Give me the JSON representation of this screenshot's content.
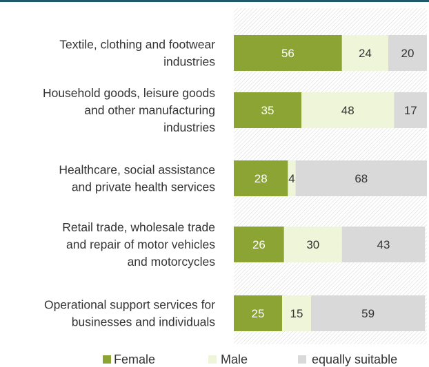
{
  "chart_data": {
    "type": "bar",
    "orientation": "horizontal",
    "stacked": true,
    "categories": [
      [
        "Textile, clothing and footwear",
        "industries"
      ],
      [
        "Household goods, leisure goods",
        "and other manufacturing",
        "industries"
      ],
      [
        "Healthcare, social assistance",
        "and private health services"
      ],
      [
        "Retail trade, wholesale trade",
        "and repair of motor vehicles",
        "and motorcycles"
      ],
      [
        "Operational support services for",
        "businesses and individuals"
      ]
    ],
    "series": [
      {
        "name": "Female",
        "values": [
          56,
          35,
          28,
          26,
          25
        ],
        "color": "#8ca434",
        "label_color": "#ffffff"
      },
      {
        "name": "Male",
        "values": [
          24,
          48,
          4,
          30,
          15
        ],
        "color": "#eef5d8",
        "label_color": "#333333"
      },
      {
        "name": "equally suitable",
        "values": [
          20,
          17,
          68,
          43,
          59
        ],
        "color": "#d9d9d9",
        "label_color": "#333333"
      }
    ],
    "xlim": [
      0,
      100
    ],
    "legend_position": "bottom",
    "grid": false,
    "plot_background": "hatched"
  }
}
